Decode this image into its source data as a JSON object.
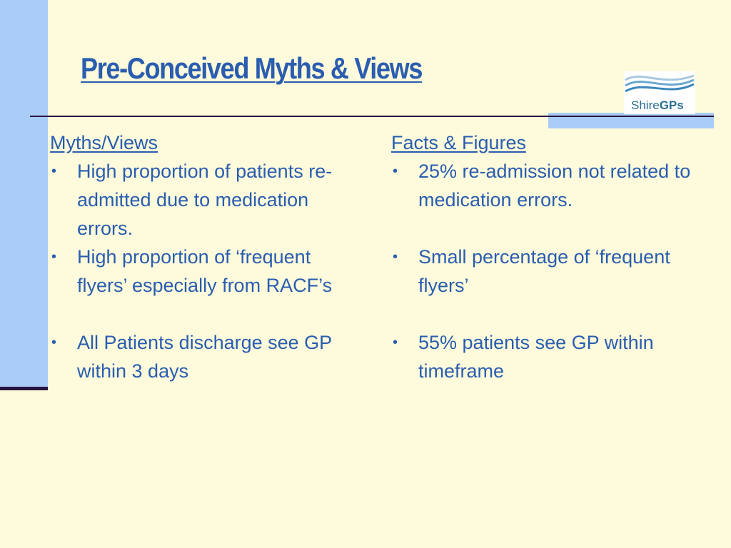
{
  "slide": {
    "title": "Pre-Conceived Myths & Views",
    "colors": {
      "background": "#fdfbdb",
      "accent_bar": "#a9cdf7",
      "rule": "#2a1340",
      "text": "#2a5db0"
    }
  },
  "logo": {
    "name_part1": "Shire",
    "name_part2": "GPs",
    "icon": "wave-logo-icon"
  },
  "myths": {
    "heading": "Myths/Views",
    "items": [
      "High proportion of patients re-admitted due to medication errors.",
      "High proportion of ‘frequent flyers’ especially from RACF’s",
      "All Patients discharge see GP within 3 days"
    ]
  },
  "facts": {
    "heading": "Facts & Figures",
    "items": [
      "25% re-admission not related to medication errors.",
      "Small percentage of ‘frequent flyers’",
      "55% patients see GP within timeframe"
    ]
  }
}
